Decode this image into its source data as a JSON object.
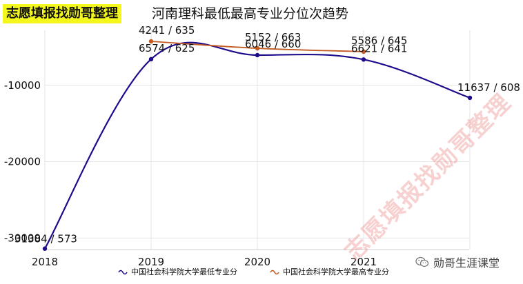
{
  "brand_label": "志愿填报找勋哥整理",
  "chart_data": {
    "type": "line",
    "title": "河南理科最低最高专业分位次趋势",
    "x": [
      "2018",
      "2019",
      "2020",
      "2021",
      "2022"
    ],
    "xtick_labels": [
      "2018",
      "2019",
      "2020",
      "2021"
    ],
    "yticks": [
      -10000,
      -20000,
      -30000
    ],
    "ytick_labels": [
      "-10000",
      "-20000",
      "-30000"
    ],
    "ylim": [
      -31500,
      -2800
    ],
    "grid": true,
    "legend_placement": "bottom-center",
    "series": [
      {
        "name": "中国社会科学院大学最低专业分",
        "color": "#1c0c8c",
        "y": [
          -31384,
          -6574,
          -6046,
          -6621,
          -11637
        ],
        "labels": [
          "31384 / 573",
          "6574 / 625",
          "6046 / 660",
          "6621 / 641",
          "11637 / 608"
        ]
      },
      {
        "name": "中国社会科学院大学最高专业分",
        "color": "#c25a22",
        "y": [
          null,
          -4241,
          -5152,
          -5586,
          null
        ],
        "labels": [
          null,
          "4241 / 635",
          "5152 / 663",
          "5586 / 645",
          null
        ]
      }
    ]
  },
  "watermark_text": "志愿填报找勋哥整理",
  "wechat_account": "勋哥生涯课堂",
  "icons": {
    "legend_low": "wave-icon",
    "legend_high": "wave-icon",
    "wechat": "wechat-logo-icon"
  }
}
